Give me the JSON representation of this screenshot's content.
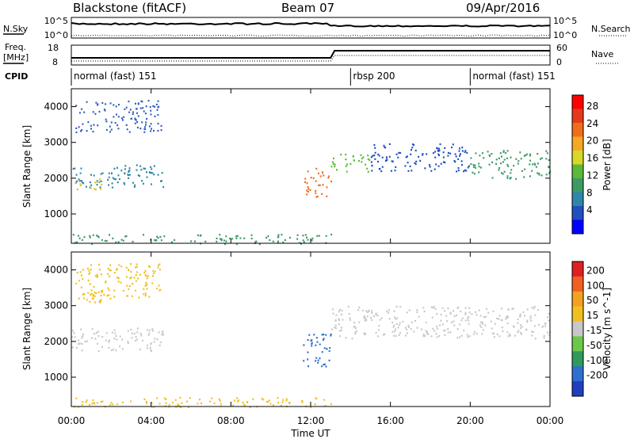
{
  "header": {
    "station": "Blackstone (fitACF)",
    "beam": "Beam 07",
    "date": "09/Apr/2016"
  },
  "param_labels": {
    "nsky": "N.Sky",
    "nsearch": "N.Search",
    "freq": "Freq.",
    "freq_unit": "[MHz]",
    "nave": "Nave",
    "cpid": "CPID"
  },
  "noise_ticks": {
    "left_top": "10^5",
    "left_bottom": "10^0",
    "right_top": "10^5",
    "right_bottom": "10^0"
  },
  "freq_ticks": {
    "left_top": "18",
    "left_bottom": "8",
    "right_top": "60",
    "right_bottom": "0"
  },
  "cpid_segments": [
    {
      "label": "normal (fast) 151",
      "start_hour": 0,
      "end_hour": 14
    },
    {
      "label": "rbsp 200",
      "start_hour": 14,
      "end_hour": 20
    },
    {
      "label": "normal (fast) 151",
      "start_hour": 20,
      "end_hour": 24
    }
  ],
  "x_axis": {
    "label": "Time UT",
    "ticks": [
      "00:00",
      "04:00",
      "08:00",
      "12:00",
      "16:00",
      "20:00",
      "00:00"
    ]
  },
  "chart_data": [
    {
      "type": "heatmap",
      "parameter": "Power",
      "ylabel": "Slant Range [km]",
      "xlim_hours": [
        0,
        24
      ],
      "ylim": [
        180,
        4500
      ],
      "yticks": [
        "1000",
        "2000",
        "3000",
        "4000"
      ],
      "colorbar": {
        "label": "Power [dB]",
        "ticks": [
          "4",
          "8",
          "12",
          "16",
          "20",
          "24",
          "28"
        ],
        "colors": [
          "#0000ff",
          "#1f4fc0",
          "#2f86a8",
          "#3c9a64",
          "#5cb838",
          "#d8d828",
          "#f5a823",
          "#f06d1c",
          "#e73a1a",
          "#ff0000"
        ]
      },
      "bands": [
        {
          "t0": 0.2,
          "t1": 4.5,
          "r0": 3300,
          "r1": 4200,
          "color": "#2f5fc0"
        },
        {
          "t0": 0.0,
          "t1": 4.6,
          "r0": 1750,
          "r1": 2400,
          "color": "#2f86a8"
        },
        {
          "t0": 0.0,
          "t1": 1.5,
          "r0": 1700,
          "r1": 2000,
          "color": "#e0c028"
        },
        {
          "t0": 11.6,
          "t1": 13.0,
          "r0": 1500,
          "r1": 2300,
          "color": "#f06d1c"
        },
        {
          "t0": 13.0,
          "t1": 15.0,
          "r0": 2200,
          "r1": 2700,
          "color": "#5cb838"
        },
        {
          "t0": 15.0,
          "t1": 20.0,
          "r0": 2200,
          "r1": 3000,
          "color": "#1f4fc0"
        },
        {
          "t0": 20.0,
          "t1": 24.0,
          "r0": 2000,
          "r1": 2800,
          "color": "#3c9a64"
        },
        {
          "t0": 0.0,
          "t1": 13.0,
          "r0": 180,
          "r1": 450,
          "color": "#3c9a64"
        }
      ]
    },
    {
      "type": "heatmap",
      "parameter": "Velocity",
      "ylabel": "Slant Range [km]",
      "xlim_hours": [
        0,
        24
      ],
      "ylim": [
        180,
        4500
      ],
      "yticks": [
        "1000",
        "2000",
        "3000",
        "4000"
      ],
      "colorbar": {
        "label": "Velocity [m s^-1]",
        "ticks": [
          "200",
          "100",
          "50",
          "15",
          "-15",
          "-50",
          "-100",
          "-200"
        ],
        "colors": [
          "#1f3fbf",
          "#2f6fcf",
          "#2f9a5a",
          "#6cc84a",
          "#c8c8c8",
          "#f0c020",
          "#f5a020",
          "#f06020",
          "#e02020"
        ]
      },
      "bands": [
        {
          "t0": 0.2,
          "t1": 4.5,
          "r0": 3100,
          "r1": 4200,
          "color": "#f0c020"
        },
        {
          "t0": 0.0,
          "t1": 4.6,
          "r0": 1750,
          "r1": 2400,
          "color": "#c8c8c8"
        },
        {
          "t0": 11.6,
          "t1": 13.0,
          "r0": 1300,
          "r1": 2300,
          "color": "#2f6fcf"
        },
        {
          "t0": 13.0,
          "t1": 24.0,
          "r0": 2100,
          "r1": 3000,
          "color": "#c8c8c8"
        },
        {
          "t0": 0.0,
          "t1": 13.0,
          "r0": 180,
          "r1": 450,
          "color": "#f0c020"
        }
      ]
    }
  ]
}
